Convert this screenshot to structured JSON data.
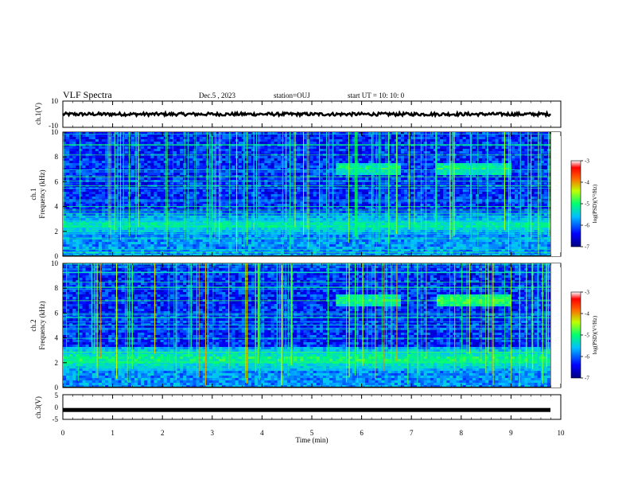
{
  "header": {
    "title": "VLF Spectra",
    "date": "Dec.5 , 2023",
    "station": "station=OUJ",
    "start_ut": "start UT =  10: 10: 0"
  },
  "chart_data": [
    {
      "type": "line",
      "ylabel": "ch.1(V)",
      "ylim": [
        -10,
        10
      ],
      "y_ticks": [
        "10",
        "-10"
      ],
      "series": [
        {
          "values_description_level": 0.0,
          "amplitude": 1.2
        }
      ],
      "x_range_min": [
        0,
        9.8
      ]
    },
    {
      "type": "heatmap",
      "ylabel": "ch.1\nFrequency (kHz)",
      "ylabel_lines": [
        "ch.1",
        "Frequency (kHz)"
      ],
      "ylim": [
        0,
        10
      ],
      "y_ticks": [
        "0",
        "2",
        "4",
        "6",
        "8",
        "10"
      ],
      "xlim": [
        0,
        10
      ],
      "colorbar": {
        "label": "log(PSD)(V²/Hz)",
        "ticks": [
          "-3",
          "-4",
          "-5",
          "-6",
          "-7"
        ],
        "range": [
          -7,
          -3
        ]
      },
      "bands": [
        {
          "freq_khz": 2.5,
          "width_khz": 1.2,
          "level": -5.2
        },
        {
          "freq_khz": 7.0,
          "width_khz": 0.5,
          "level": -5.0,
          "time_min": [
            5.5,
            6.8
          ]
        },
        {
          "freq_khz": 7.0,
          "width_khz": 0.5,
          "level": -5.0,
          "time_min": [
            7.5,
            9.0
          ]
        }
      ]
    },
    {
      "type": "heatmap",
      "ylabel": "ch.2\nFrequency (kHz)",
      "ylabel_lines": [
        "ch.2",
        "Frequency (kHz)"
      ],
      "ylim": [
        0,
        10
      ],
      "y_ticks": [
        "0",
        "2",
        "4",
        "6",
        "8",
        "10"
      ],
      "xlim": [
        0,
        10
      ],
      "colorbar": {
        "label": "log(PSD)(V²/Hz)",
        "ticks": [
          "-3",
          "-4",
          "-5",
          "-6",
          "-7"
        ],
        "range": [
          -7,
          -3
        ]
      },
      "bands": [
        {
          "freq_khz": 2.3,
          "width_khz": 1.0,
          "level": -5.0
        },
        {
          "freq_khz": 7.0,
          "width_khz": 0.5,
          "level": -5.0,
          "time_min": [
            5.5,
            6.8
          ]
        },
        {
          "freq_khz": 7.0,
          "width_khz": 0.5,
          "level": -4.8,
          "time_min": [
            7.5,
            9.0
          ]
        }
      ]
    },
    {
      "type": "line",
      "ylabel": "ch.3(V)",
      "ylim": [
        -5,
        5
      ],
      "y_ticks": [
        "5",
        "0",
        "-5"
      ],
      "series": [
        {
          "level": -1.2
        }
      ]
    }
  ],
  "x_axis": {
    "label": "Time  (min)",
    "ticks": [
      "0",
      "1",
      "2",
      "3",
      "4",
      "5",
      "6",
      "7",
      "8",
      "9",
      "10"
    ],
    "range": [
      0,
      10
    ]
  }
}
